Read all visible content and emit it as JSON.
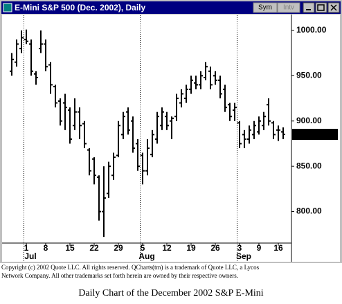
{
  "window": {
    "title": "E-Mini S&P 500 (Dec. 2002), Daily",
    "buttons": [
      "Sym",
      "Intv"
    ]
  },
  "chart_data": {
    "type": "ohlc",
    "categories": [
      null,
      null,
      null,
      "1",
      null,
      null,
      null,
      "8",
      null,
      null,
      null,
      null,
      "15",
      null,
      null,
      null,
      null,
      "22",
      null,
      null,
      null,
      null,
      "29",
      null,
      null,
      null,
      null,
      "5",
      null,
      null,
      null,
      null,
      "12",
      null,
      null,
      null,
      null,
      "19",
      null,
      null,
      null,
      null,
      "26",
      null,
      null,
      null,
      null,
      "3",
      null,
      null,
      null,
      "9",
      null,
      null,
      null,
      "16",
      null
    ],
    "months": [
      null,
      null,
      null,
      "Jul",
      null,
      null,
      null,
      null,
      null,
      null,
      null,
      null,
      null,
      null,
      null,
      null,
      null,
      null,
      null,
      null,
      null,
      null,
      null,
      null,
      null,
      null,
      null,
      "Aug",
      null,
      null,
      null,
      null,
      null,
      null,
      null,
      null,
      null,
      null,
      null,
      null,
      null,
      null,
      null,
      null,
      null,
      null,
      null,
      "Sep",
      null,
      null,
      null,
      null,
      null,
      null,
      null,
      null,
      null
    ],
    "open": [
      955,
      965,
      980,
      990,
      985,
      952,
      980,
      985,
      962,
      938,
      922,
      920,
      912,
      895,
      910,
      897,
      868,
      858,
      838,
      800,
      820,
      840,
      862,
      885,
      910,
      900,
      875,
      862,
      845,
      863,
      880,
      895,
      905,
      900,
      905,
      920,
      925,
      935,
      942,
      940,
      948,
      955,
      950,
      945,
      935,
      918,
      912,
      898,
      885,
      880,
      885,
      888,
      895,
      918,
      898,
      890,
      888
    ],
    "high": [
      975,
      990,
      1000,
      1001,
      990,
      955,
      1000,
      990,
      965,
      940,
      925,
      930,
      915,
      925,
      915,
      900,
      870,
      860,
      840,
      850,
      855,
      865,
      900,
      910,
      915,
      905,
      880,
      865,
      880,
      890,
      910,
      915,
      910,
      905,
      930,
      935,
      940,
      950,
      950,
      955,
      965,
      960,
      955,
      950,
      940,
      920,
      920,
      900,
      890,
      895,
      900,
      905,
      910,
      925,
      900,
      895,
      893
    ],
    "low": [
      950,
      960,
      975,
      985,
      950,
      940,
      975,
      955,
      930,
      915,
      895,
      890,
      875,
      890,
      880,
      870,
      840,
      830,
      790,
      772,
      815,
      835,
      860,
      880,
      885,
      865,
      845,
      830,
      840,
      860,
      875,
      890,
      890,
      880,
      900,
      915,
      920,
      930,
      935,
      935,
      945,
      935,
      940,
      925,
      910,
      900,
      900,
      870,
      870,
      875,
      880,
      885,
      890,
      895,
      880,
      878,
      880
    ],
    "close": [
      968,
      985,
      992,
      988,
      955,
      948,
      985,
      960,
      940,
      920,
      900,
      915,
      880,
      910,
      895,
      875,
      845,
      840,
      800,
      815,
      850,
      860,
      895,
      905,
      890,
      870,
      850,
      845,
      870,
      885,
      905,
      910,
      895,
      903,
      925,
      930,
      935,
      945,
      940,
      950,
      960,
      940,
      945,
      930,
      915,
      905,
      915,
      875,
      880,
      890,
      895,
      900,
      905,
      900,
      885,
      890,
      885.25
    ],
    "last_price": 885.25,
    "ylim": [
      766,
      1016.8
    ],
    "yticks": [
      {
        "value": 1000,
        "label": "1000.00"
      },
      {
        "value": 950,
        "label": "950.00"
      },
      {
        "value": 900,
        "label": "900.00"
      },
      {
        "value": 850,
        "label": "850.00"
      },
      {
        "value": 800,
        "label": "800.00"
      }
    ]
  },
  "footer": {
    "lines": [
      "Copyright (c) 2002 Quote LLC. All rights reserved. QCharts(tm) is a trademark of Quote LLC, a Lycos",
      "Network Company.  All other trademarks set forth herein are owned by their respective owners."
    ],
    "caption": "Daily Chart of the December 2002 S&P E-Mini"
  }
}
